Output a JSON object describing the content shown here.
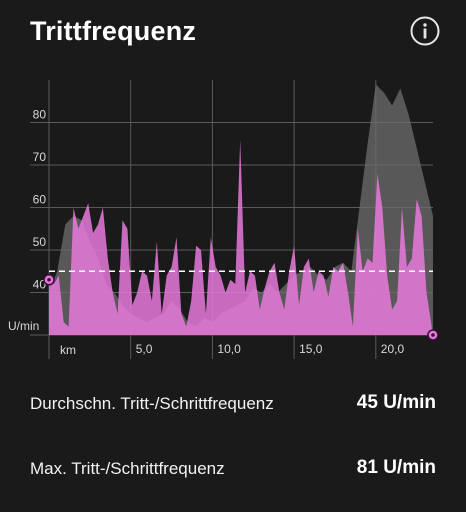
{
  "header": {
    "title": "Trittfrequenz",
    "info_icon": "info-circle-icon"
  },
  "colors": {
    "background": "#1a1a1a",
    "cadence_fill": "#e879dc",
    "comparison_fill": "#6e6e6e",
    "grid": "#5a5a5a",
    "average_line": "#ffffff",
    "marker": "#e879dc"
  },
  "chart_data": {
    "type": "area",
    "unit_label": "U/min",
    "x_unit_label": "km",
    "x_ticks": [
      "5,0",
      "10,0",
      "15,0",
      "20,0"
    ],
    "y_ticks": [
      "40",
      "50",
      "60",
      "70",
      "80"
    ],
    "xlim": [
      0,
      23.5
    ],
    "ylim": [
      30,
      90
    ],
    "grid": true,
    "average_line": 45,
    "series": [
      {
        "values_x": [
          0,
          0.3,
          0.6,
          0.9,
          1.2,
          1.5,
          1.8,
          2.1,
          2.4,
          2.7,
          3.0,
          3.3,
          3.6,
          3.9,
          4.2,
          4.5,
          4.8,
          5.1,
          5.4,
          5.7,
          6.0,
          6.3,
          6.6,
          6.9,
          7.2,
          7.5,
          7.8,
          8.1,
          8.4,
          8.7,
          9.0,
          9.3,
          9.6,
          9.9,
          10.2,
          10.5,
          10.8,
          11.1,
          11.4,
          11.7,
          12.0,
          12.3,
          12.6,
          12.9,
          13.2,
          13.5,
          13.8,
          14.1,
          14.4,
          14.7,
          15.0,
          15.3,
          15.6,
          15.9,
          16.2,
          16.5,
          16.8,
          17.1,
          17.4,
          17.7,
          18.0,
          18.3,
          18.6,
          18.9,
          19.2,
          19.5,
          19.8,
          20.1,
          20.4,
          20.7,
          21.0,
          21.3,
          21.6,
          21.9,
          22.2,
          22.5,
          22.8,
          23.1,
          23.5
        ],
        "values_y": [
          43,
          42,
          44,
          33,
          32,
          60,
          55,
          58,
          61,
          54,
          56,
          60,
          48,
          40,
          35,
          57,
          55,
          37,
          40,
          45,
          44,
          38,
          52,
          35,
          44,
          46,
          53,
          35,
          32,
          38,
          51,
          50,
          35,
          53,
          46,
          44,
          40,
          43,
          42,
          76,
          40,
          45,
          44,
          36,
          41,
          45,
          47,
          40,
          36,
          45,
          51,
          37,
          46,
          48,
          40,
          45,
          44,
          39,
          46,
          45,
          47,
          40,
          32,
          55,
          45,
          48,
          47,
          68,
          60,
          44,
          36,
          38,
          60,
          46,
          48,
          62,
          58,
          40,
          30
        ]
      },
      {
        "values_x": [
          0,
          0.5,
          1.0,
          1.5,
          2.0,
          2.5,
          3.0,
          3.5,
          4.0,
          4.5,
          5.0,
          5.5,
          6.0,
          6.5,
          7.0,
          7.5,
          8.0,
          8.5,
          9.0,
          9.5,
          10.0,
          10.5,
          11.0,
          11.5,
          12.0,
          12.5,
          13.0,
          13.5,
          14.0,
          14.5,
          15.0,
          15.5,
          16.0,
          16.5,
          17.0,
          17.5,
          18.0,
          18.5,
          19.0,
          19.5,
          20.0,
          20.5,
          21.0,
          21.5,
          22.0,
          22.5,
          23.0,
          23.5
        ],
        "values_y": [
          40,
          45,
          56,
          58,
          57,
          52,
          48,
          42,
          40,
          37,
          35,
          34,
          33,
          34,
          35,
          38,
          36,
          33,
          32,
          34,
          33,
          35,
          36,
          37,
          38,
          41,
          40,
          42,
          40,
          42,
          44,
          45,
          46,
          44,
          43,
          46,
          47,
          45,
          60,
          75,
          89,
          87,
          84,
          88,
          82,
          74,
          66,
          58
        ]
      }
    ]
  },
  "stats": [
    {
      "label": "Durchschn. Tritt-/Schrittfrequenz",
      "value": "45 U/min"
    },
    {
      "label": "Max. Tritt-/Schrittfrequenz",
      "value": "81 U/min"
    }
  ]
}
